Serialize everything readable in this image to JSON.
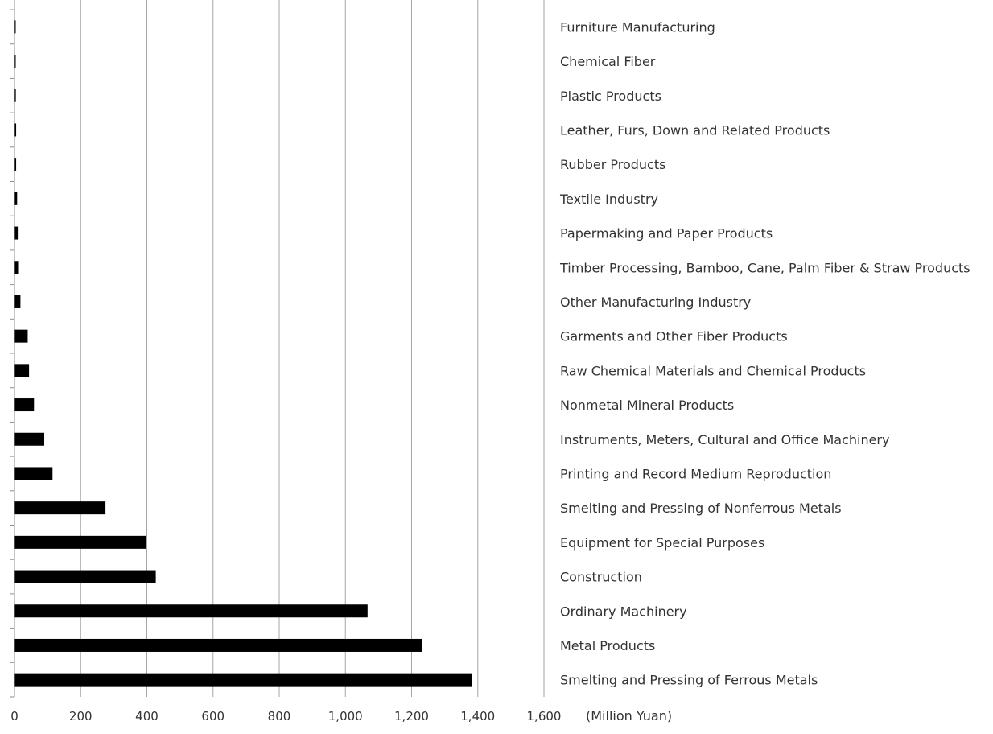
{
  "chart_data": {
    "type": "bar",
    "orientation": "horizontal",
    "categories": [
      "Furniture Manufacturing",
      "Chemical Fiber",
      "Plastic Products",
      "Leather, Furs, Down and Related Products",
      "Rubber Products",
      "Textile Industry",
      "Papermaking and Paper Products",
      "Timber Processing, Bamboo, Cane, Palm Fiber & Straw Products",
      "Other Manufacturing Industry",
      "Garments and Other Fiber Products",
      "Raw Chemical Materials and Chemical Products",
      "Nonmetal Mineral Products",
      "Instruments, Meters, Cultural and Office Machinery",
      "Printing and Record Medium Reproduction",
      "Smelting and Pressing of Nonferrous Metals",
      "Equipment for Special Purposes",
      "Construction",
      "Ordinary Machinery",
      "Metal Products",
      "Smelting and Pressing of Ferrous Metals"
    ],
    "values": [
      2,
      3,
      4,
      5,
      5,
      8,
      10,
      11,
      18,
      40,
      44,
      59,
      90,
      115,
      275,
      397,
      427,
      1067,
      1232,
      1382
    ],
    "xlim": [
      0,
      1600
    ],
    "xticks": [
      0,
      200,
      400,
      600,
      800,
      1000,
      1200,
      1400,
      1600
    ],
    "xtick_labels": [
      "0",
      "200",
      "400",
      "600",
      "800",
      "1,000",
      "1,200",
      "1,400",
      "1,600"
    ],
    "unit_label": "(Million Yuan)",
    "title": "",
    "grid": "vertical",
    "colors": {
      "bar": "#000000",
      "grid": "#a6a6a6",
      "text": "#333333",
      "axis": "#8c8c8c"
    }
  }
}
